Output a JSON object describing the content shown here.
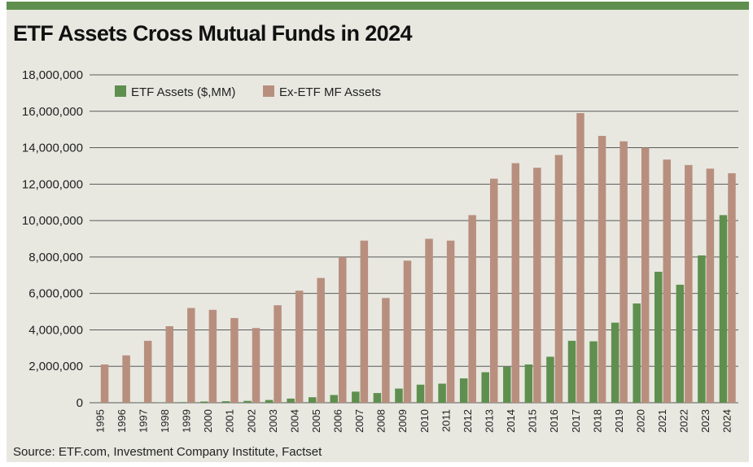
{
  "title": "ETF Assets Cross Mutual Funds in 2024",
  "source": "Source: ETF.com, Investment Company Institute, Factset",
  "colors": {
    "background": "#e8e8e1",
    "topbar": "#5f8f4e",
    "etf": "#5f8f4e",
    "mf": "#b88f7e",
    "grid": "#5a5a5a"
  },
  "chart_data": {
    "type": "bar",
    "title": "ETF Assets Cross Mutual Funds in 2024",
    "xlabel": "",
    "ylabel": "",
    "ylim": [
      0,
      18000000
    ],
    "yticks": [
      0,
      2000000,
      4000000,
      6000000,
      8000000,
      10000000,
      12000000,
      14000000,
      16000000,
      18000000
    ],
    "ytick_labels": [
      "0",
      "2,000,000",
      "4,000,000",
      "6,000,000",
      "8,000,000",
      "10,000,000",
      "12,000,000",
      "14,000,000",
      "16,000,000",
      "18,000,000"
    ],
    "grid": true,
    "legend_position": "top-left",
    "categories": [
      "1995",
      "1996",
      "1997",
      "1998",
      "1999",
      "2000",
      "2001",
      "2002",
      "2003",
      "2004",
      "2005",
      "2006",
      "2007",
      "2008",
      "2009",
      "2010",
      "2011",
      "2012",
      "2013",
      "2014",
      "2015",
      "2016",
      "2017",
      "2018",
      "2019",
      "2020",
      "2021",
      "2022",
      "2023",
      "2024"
    ],
    "series": [
      {
        "name": "ETF Assets ($,MM)",
        "values": [
          2000,
          2000,
          7000,
          16000,
          34000,
          66000,
          83000,
          102000,
          151000,
          228000,
          301000,
          423000,
          608000,
          531000,
          777000,
          992000,
          1048000,
          1337000,
          1675000,
          1975000,
          2101000,
          2525000,
          3401000,
          3371000,
          4396000,
          5449000,
          7191000,
          6479000,
          8087000,
          10300000
        ]
      },
      {
        "name": "Ex-ETF MF Assets",
        "values": [
          2100000,
          2600000,
          3400000,
          4200000,
          5200000,
          5100000,
          4650000,
          4100000,
          5350000,
          6150000,
          6850000,
          8000000,
          8900000,
          5750000,
          7800000,
          9000000,
          8900000,
          10300000,
          12300000,
          13150000,
          12900000,
          13600000,
          15900000,
          14650000,
          14350000,
          14000000,
          13350000,
          13050000,
          12850000,
          12600000
        ]
      }
    ]
  }
}
